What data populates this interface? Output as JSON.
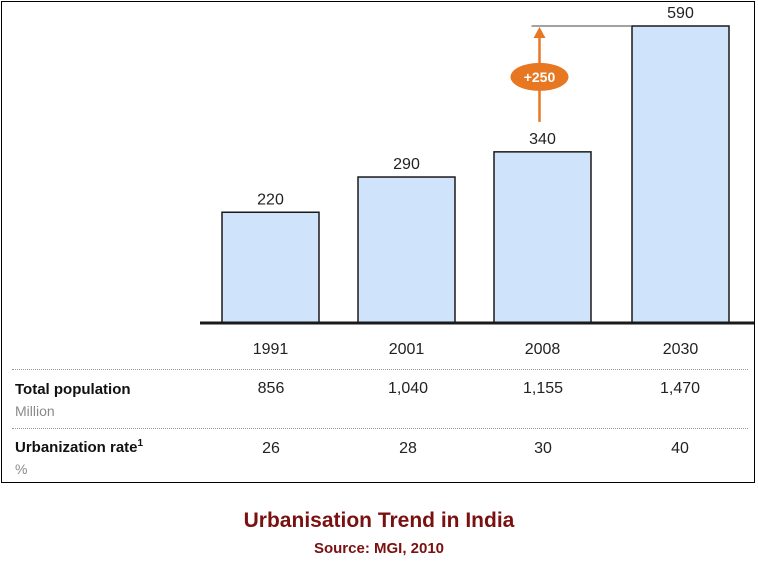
{
  "chart_data": {
    "type": "bar",
    "categories": [
      "1991",
      "2001",
      "2008",
      "2030"
    ],
    "values": [
      220,
      290,
      340,
      590
    ],
    "ylim": [
      0,
      600
    ],
    "grid": false,
    "legend": "none",
    "annotation": {
      "label": "+250",
      "from_category": "2008",
      "to_category": "2030"
    },
    "colors": {
      "bar_fill": "#cfe3fb",
      "annotation": "#e87722",
      "axis": "#1a1a1a"
    }
  },
  "table": {
    "rows": [
      {
        "title": "Total population",
        "superscript": "",
        "unit": "Million",
        "values": [
          "856",
          "1,040",
          "1,155",
          "1,470"
        ]
      },
      {
        "title": "Urbanization rate",
        "superscript": "1",
        "unit": "%",
        "values": [
          "26",
          "28",
          "30",
          "40"
        ]
      }
    ]
  },
  "caption": {
    "title": "Urbanisation Trend in India",
    "source": "Source: MGI, 2010"
  }
}
